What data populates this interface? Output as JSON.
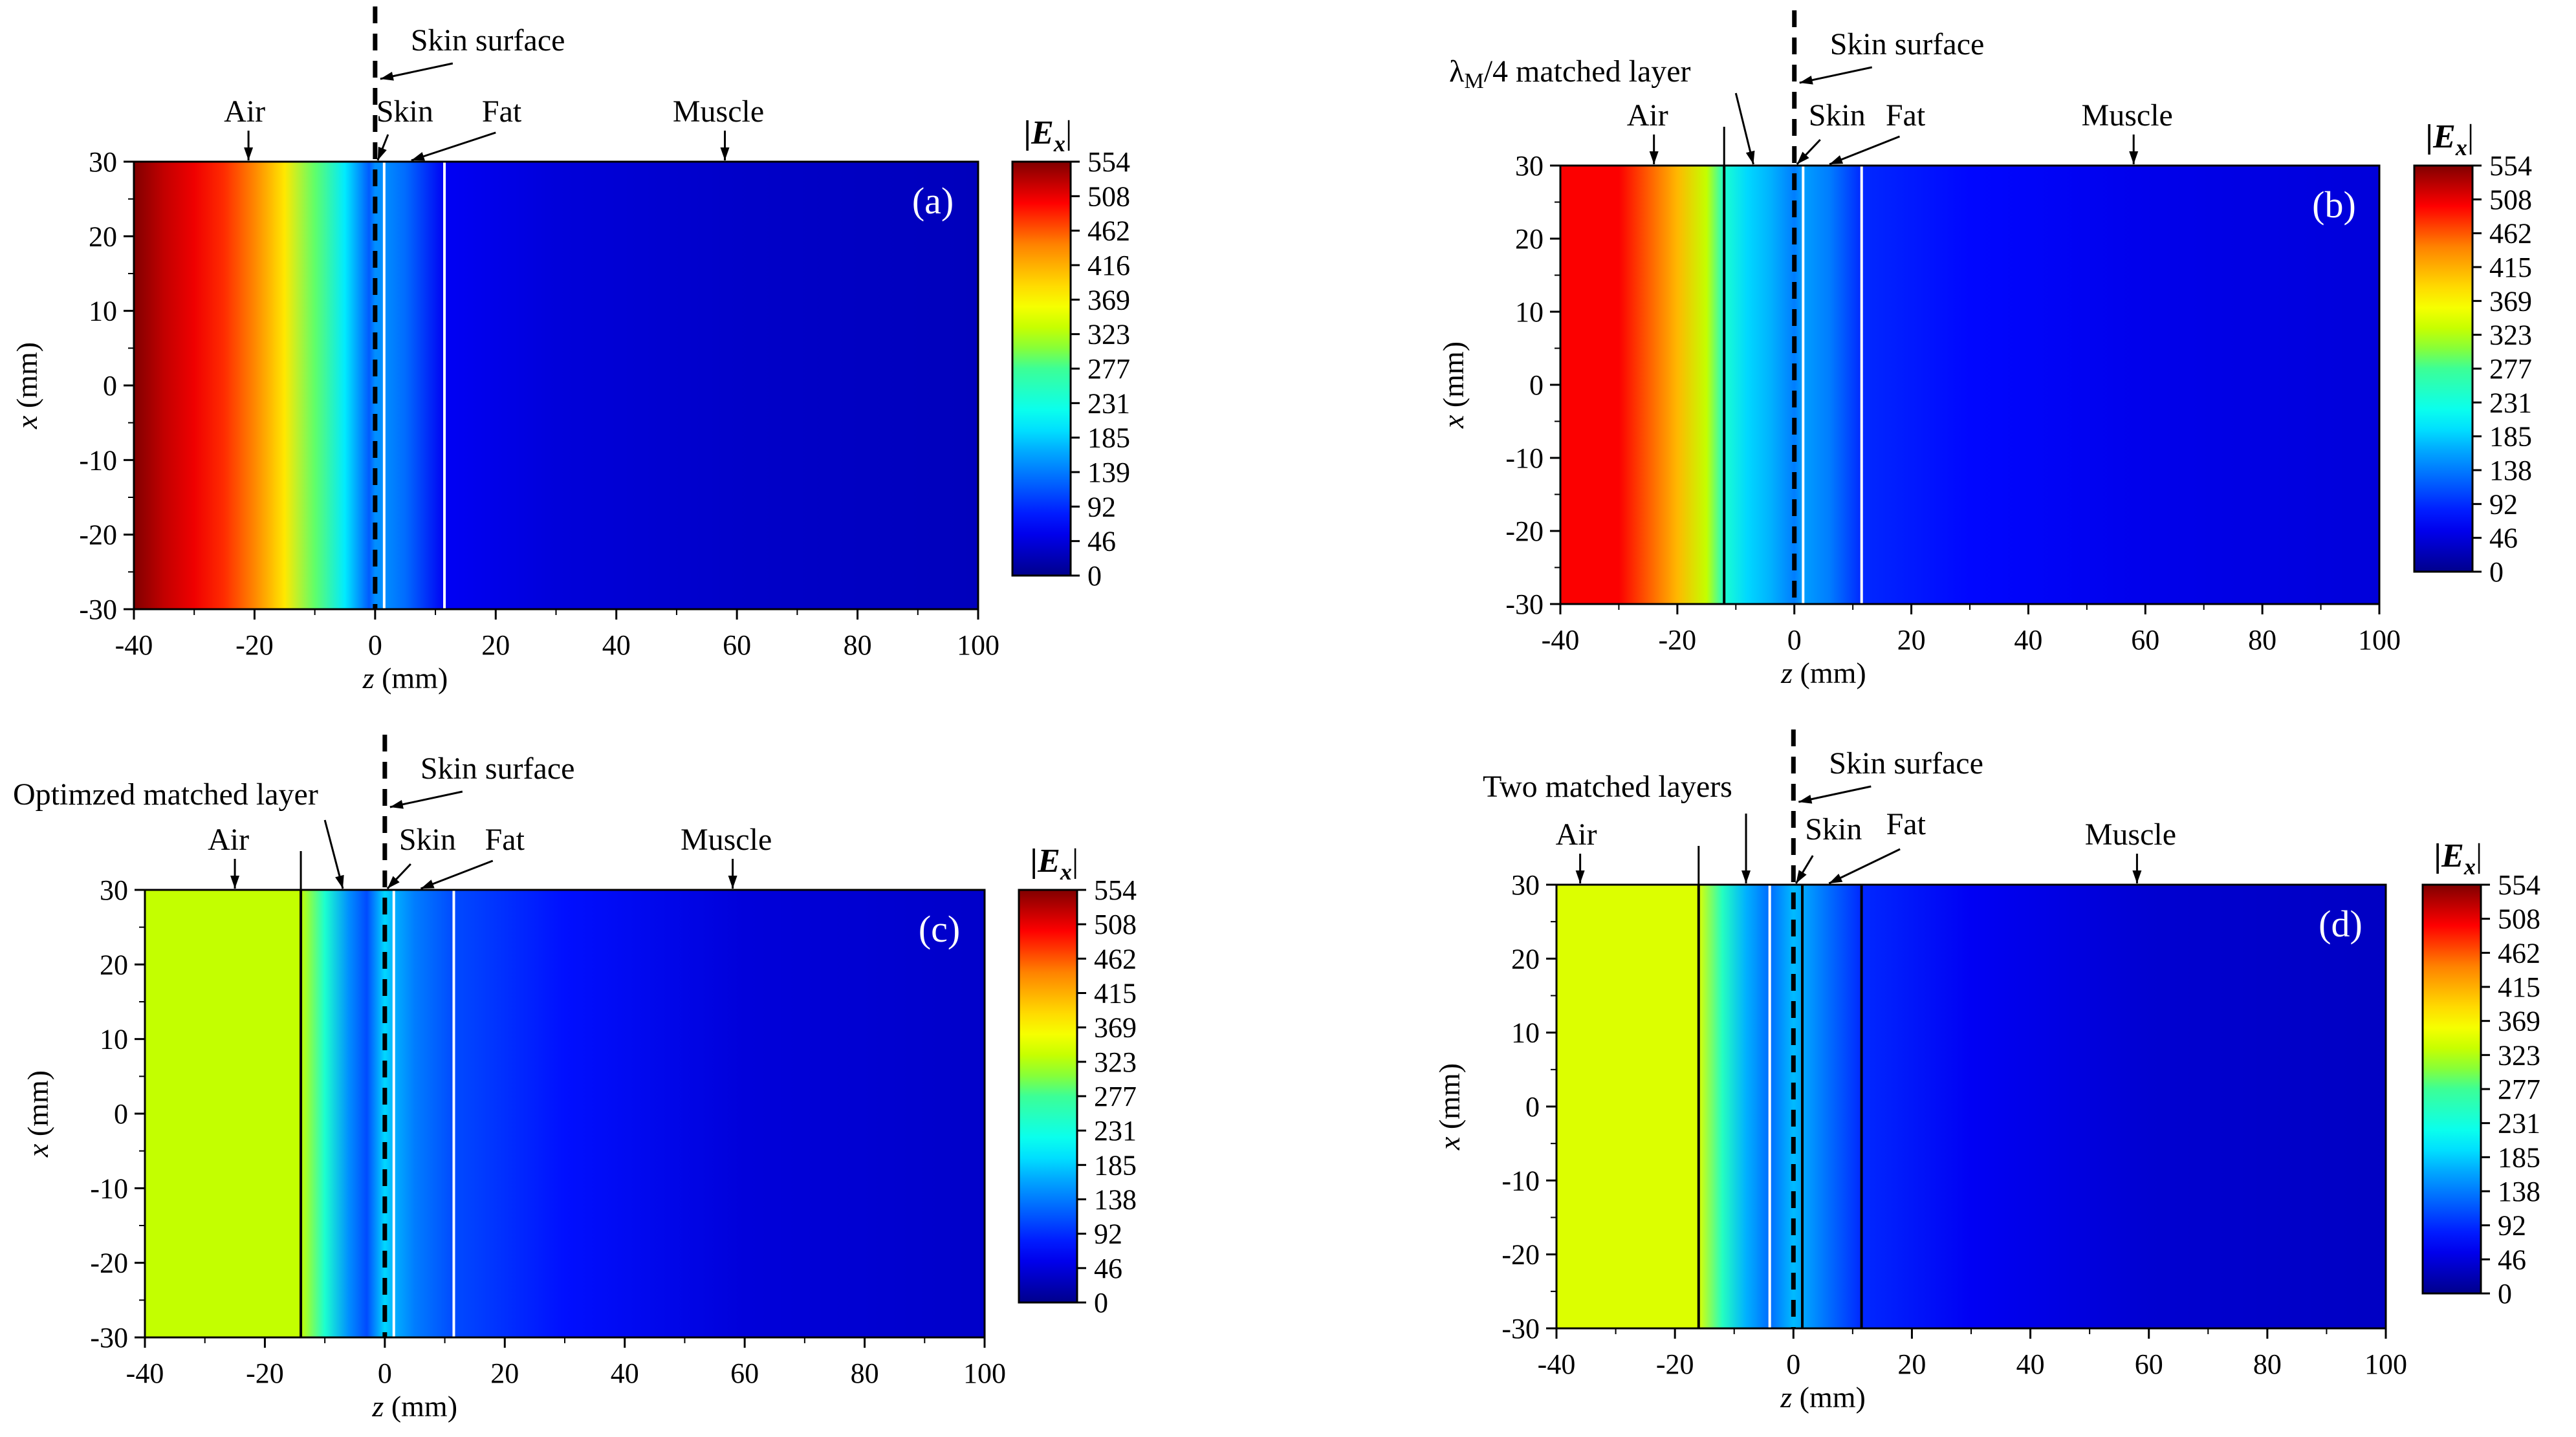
{
  "figure": {
    "colorbar_title": "|E",
    "colorbar_title_sub": "x",
    "colorbar_title_end": "|",
    "annotations": {
      "skin_surface": "Skin surface",
      "air": "Air",
      "skin": "Skin",
      "fat": "Fat",
      "muscle": "Muscle",
      "lambda_prefix": "λ",
      "lambda_sub": "M",
      "lambda_suffix": "/4 matched layer",
      "optimized_layer": "Optimzed matched layer",
      "two_layers": "Two matched layers"
    }
  },
  "chart_data": [
    {
      "panel": "(a)",
      "type": "heatmap",
      "xlabel": "z (mm)",
      "ylabel": "x (mm)",
      "xlim": [
        -40,
        100
      ],
      "ylim": [
        -30,
        30
      ],
      "x_ticks": [
        -40,
        -20,
        0,
        20,
        40,
        60,
        80,
        100
      ],
      "y_ticks": [
        30,
        20,
        10,
        0,
        -10,
        -20,
        -30
      ],
      "colorbar_ticks": [
        "554",
        "508",
        "462",
        "416",
        "369",
        "323",
        "277",
        "231",
        "185",
        "139",
        "92",
        "46",
        "0"
      ],
      "color_range": [
        0,
        554
      ],
      "skin_surface_z": 0,
      "boundaries_z": [
        {
          "z": 1.5,
          "color": "#ffffff"
        },
        {
          "z": 11.5,
          "color": "#ffffff"
        }
      ],
      "field_profile": {
        "z": [
          -40,
          -35,
          -30,
          -25,
          -20,
          -15,
          -10,
          -5,
          -1,
          0,
          1.5,
          5,
          11.5,
          30,
          60,
          100
        ],
        "value": [
          554,
          525,
          505,
          480,
          440,
          380,
          290,
          200,
          120,
          150,
          150,
          130,
          60,
          45,
          35,
          28
        ]
      }
    },
    {
      "panel": "(b)",
      "type": "heatmap",
      "xlabel": "z (mm)",
      "ylabel": "x (mm)",
      "xlim": [
        -40,
        100
      ],
      "ylim": [
        -30,
        30
      ],
      "x_ticks": [
        -40,
        -20,
        0,
        20,
        40,
        60,
        80,
        100
      ],
      "y_ticks": [
        30,
        20,
        10,
        0,
        -10,
        -20,
        -30
      ],
      "colorbar_ticks": [
        "554",
        "508",
        "462",
        "415",
        "369",
        "323",
        "277",
        "231",
        "185",
        "138",
        "92",
        "46",
        "0"
      ],
      "color_range": [
        0,
        554
      ],
      "skin_surface_z": 0,
      "boundaries_z": [
        {
          "z": -12,
          "color": "#000000"
        },
        {
          "z": 1.5,
          "color": "#ffffff"
        },
        {
          "z": 11.5,
          "color": "#ffffff"
        }
      ],
      "field_profile": {
        "z": [
          -40,
          -30,
          -25,
          -20,
          -15,
          -12,
          -8,
          -4,
          0,
          1.5,
          6,
          11.5,
          30,
          60,
          100
        ],
        "value": [
          500,
          500,
          460,
          410,
          330,
          240,
          190,
          170,
          140,
          160,
          140,
          90,
          70,
          55,
          45
        ]
      }
    },
    {
      "panel": "(c)",
      "type": "heatmap",
      "xlabel": "z (mm)",
      "ylabel": "x (mm)",
      "xlim": [
        -40,
        100
      ],
      "ylim": [
        -30,
        30
      ],
      "x_ticks": [
        -40,
        -20,
        0,
        20,
        40,
        60,
        80,
        100
      ],
      "y_ticks": [
        30,
        20,
        10,
        0,
        -10,
        -20,
        -30
      ],
      "colorbar_ticks": [
        "554",
        "508",
        "462",
        "415",
        "369",
        "323",
        "277",
        "231",
        "185",
        "138",
        "92",
        "46",
        "0"
      ],
      "color_range": [
        0,
        554
      ],
      "skin_surface_z": 0,
      "boundaries_z": [
        {
          "z": -14,
          "color": "#000000"
        },
        {
          "z": 1.5,
          "color": "#ffffff"
        },
        {
          "z": 11.5,
          "color": "#ffffff"
        }
      ],
      "field_profile": {
        "z": [
          -40,
          -30,
          -20,
          -14,
          -10,
          -6,
          -3,
          0,
          1.5,
          5,
          11.5,
          30,
          60,
          100
        ],
        "value": [
          330,
          330,
          330,
          330,
          240,
          150,
          110,
          190,
          170,
          140,
          110,
          75,
          45,
          35
        ]
      }
    },
    {
      "panel": "(d)",
      "type": "heatmap",
      "xlabel": "z (mm)",
      "ylabel": "x (mm)",
      "xlim": [
        -40,
        100
      ],
      "ylim": [
        -30,
        30
      ],
      "x_ticks": [
        -40,
        -20,
        0,
        20,
        40,
        60,
        80,
        100
      ],
      "y_ticks": [
        30,
        20,
        10,
        0,
        -10,
        -20,
        -30
      ],
      "colorbar_ticks": [
        "554",
        "508",
        "462",
        "415",
        "369",
        "323",
        "277",
        "231",
        "185",
        "138",
        "92",
        "46",
        "0"
      ],
      "color_range": [
        0,
        554
      ],
      "skin_surface_z": 0,
      "boundaries_z": [
        {
          "z": -16,
          "color": "#000000"
        },
        {
          "z": -4,
          "color": "#ffffff"
        },
        {
          "z": 1.5,
          "color": "#000000"
        },
        {
          "z": 11.5,
          "color": "#000000"
        }
      ],
      "field_profile": {
        "z": [
          -40,
          -30,
          -20,
          -16,
          -12,
          -8,
          -4,
          0,
          1.5,
          6,
          11.5,
          30,
          60,
          100
        ],
        "value": [
          345,
          345,
          345,
          345,
          250,
          170,
          130,
          175,
          165,
          130,
          90,
          60,
          40,
          32
        ]
      }
    }
  ]
}
